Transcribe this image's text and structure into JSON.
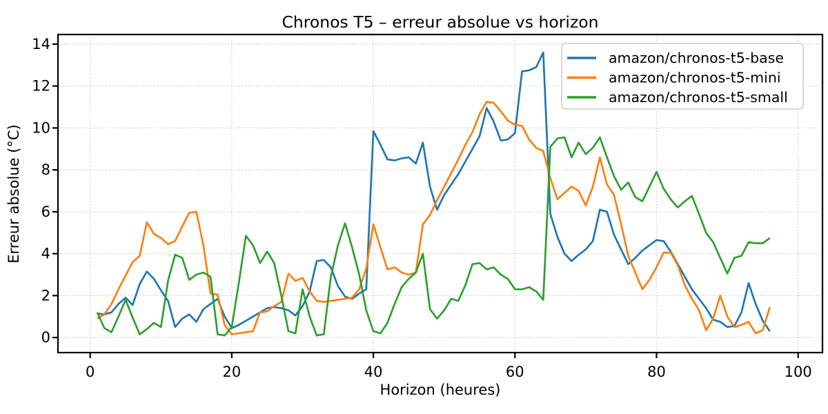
{
  "figure": {
    "title": "Chronos T5 – erreur absolue vs horizon",
    "xlabel": "Horizon (heures)",
    "ylabel": "Erreur absolue (°C)"
  },
  "style": {
    "background": "#ffffff",
    "grid_color": "#c8c8c8",
    "spine_color": "#000000",
    "legend_border": "#cccccc",
    "series_line_width": 2.7
  },
  "chart_data": {
    "type": "line",
    "title": "Chronos T5 – erreur absolue vs horizon",
    "xlabel": "Horizon (heures)",
    "ylabel": "Erreur absolue (°C)",
    "grid": true,
    "grid_style": "dotted",
    "legend_position": "upper right",
    "xlim": [
      -4.55,
      103.44
    ],
    "ylim": [
      -0.72,
      14.46
    ],
    "xticks": [
      0,
      20,
      40,
      60,
      80,
      100
    ],
    "yticks": [
      0,
      2,
      4,
      6,
      8,
      10,
      12,
      14
    ],
    "x": [
      1,
      2,
      3,
      4,
      5,
      6,
      7,
      8,
      9,
      10,
      11,
      12,
      13,
      14,
      15,
      16,
      17,
      18,
      19,
      20,
      21,
      22,
      23,
      24,
      25,
      26,
      27,
      28,
      29,
      30,
      31,
      32,
      33,
      34,
      35,
      36,
      37,
      38,
      39,
      40,
      41,
      42,
      43,
      44,
      45,
      46,
      47,
      48,
      49,
      50,
      51,
      52,
      53,
      54,
      55,
      56,
      57,
      58,
      59,
      60,
      61,
      62,
      63,
      64,
      65,
      66,
      67,
      68,
      69,
      70,
      71,
      72,
      73,
      74,
      75,
      76,
      77,
      78,
      79,
      80,
      81,
      82,
      83,
      84,
      85,
      86,
      87,
      88,
      89,
      90,
      91,
      92,
      93,
      94,
      95,
      96
    ],
    "series": [
      {
        "id": "base",
        "name": "amazon/chronos-t5-base",
        "color": "#1f77b4",
        "values": [
          1.15,
          1.1,
          1.2,
          1.6,
          1.9,
          1.55,
          2.55,
          3.15,
          2.8,
          2.25,
          1.75,
          0.5,
          0.9,
          1.1,
          0.75,
          1.35,
          1.6,
          1.85,
          1.0,
          0.45,
          0.6,
          0.8,
          1.0,
          1.2,
          1.4,
          1.45,
          1.4,
          1.3,
          1.05,
          1.5,
          2.2,
          3.65,
          3.7,
          3.35,
          2.45,
          1.95,
          1.85,
          2.1,
          2.3,
          9.85,
          9.2,
          8.5,
          8.45,
          8.55,
          8.6,
          8.3,
          9.3,
          7.2,
          6.1,
          6.8,
          7.3,
          7.8,
          8.4,
          9.0,
          9.6,
          10.95,
          10.3,
          9.4,
          9.45,
          9.75,
          12.7,
          12.75,
          12.9,
          13.6,
          5.9,
          4.8,
          4.0,
          3.65,
          3.95,
          4.2,
          4.6,
          6.1,
          6.0,
          4.9,
          4.2,
          3.5,
          3.8,
          4.15,
          4.4,
          4.65,
          4.6,
          4.1,
          3.5,
          2.9,
          2.3,
          1.85,
          1.4,
          0.85,
          0.75,
          0.5,
          0.55,
          1.2,
          2.6,
          1.6,
          0.8,
          0.3
        ]
      },
      {
        "id": "mini",
        "name": "amazon/chronos-t5-mini",
        "color": "#ff7f0e",
        "values": [
          0.9,
          1.1,
          1.6,
          2.3,
          2.95,
          3.6,
          3.9,
          5.5,
          4.95,
          4.75,
          4.45,
          4.6,
          5.3,
          5.95,
          6.0,
          4.4,
          2.1,
          2.05,
          0.6,
          0.15,
          0.2,
          0.25,
          0.3,
          1.2,
          1.25,
          1.5,
          1.7,
          3.05,
          2.7,
          2.85,
          2.2,
          1.75,
          1.7,
          1.75,
          1.8,
          1.85,
          1.9,
          2.3,
          3.3,
          5.4,
          4.3,
          3.25,
          3.35,
          3.1,
          3.0,
          3.1,
          5.4,
          5.85,
          6.55,
          7.2,
          7.85,
          8.5,
          9.2,
          9.8,
          10.65,
          11.25,
          11.2,
          10.8,
          10.35,
          10.15,
          10.1,
          9.45,
          9.05,
          8.9,
          7.6,
          6.6,
          6.9,
          7.2,
          7.0,
          6.3,
          7.2,
          8.6,
          7.3,
          6.8,
          5.4,
          3.9,
          3.1,
          2.3,
          2.75,
          3.35,
          4.05,
          4.05,
          3.45,
          2.5,
          1.85,
          1.3,
          0.35,
          0.9,
          2.0,
          1.0,
          0.5,
          0.6,
          0.75,
          0.2,
          0.35,
          1.45
        ]
      },
      {
        "id": "small",
        "name": "amazon/chronos-t5-small",
        "color": "#2ca02c",
        "values": [
          1.2,
          0.45,
          0.25,
          1.0,
          1.8,
          0.95,
          0.15,
          0.4,
          0.7,
          0.5,
          2.7,
          3.95,
          3.8,
          2.75,
          3.0,
          3.1,
          2.9,
          0.15,
          0.1,
          0.5,
          2.6,
          4.85,
          4.4,
          3.55,
          4.1,
          3.55,
          2.0,
          0.3,
          0.2,
          2.3,
          1.0,
          0.1,
          0.15,
          2.9,
          4.4,
          5.45,
          4.3,
          3.0,
          1.3,
          0.3,
          0.2,
          0.7,
          1.6,
          2.4,
          2.8,
          3.1,
          4.0,
          1.35,
          0.9,
          1.3,
          1.85,
          1.75,
          2.5,
          3.5,
          3.55,
          3.25,
          3.35,
          3.0,
          2.8,
          2.3,
          2.3,
          2.4,
          2.2,
          1.8,
          9.1,
          9.5,
          9.55,
          8.6,
          9.3,
          8.75,
          9.05,
          9.55,
          8.6,
          7.7,
          7.05,
          7.4,
          6.7,
          6.5,
          7.2,
          7.9,
          7.1,
          6.6,
          6.2,
          6.5,
          6.75,
          5.9,
          5.0,
          4.55,
          3.8,
          3.05,
          3.8,
          3.9,
          4.55,
          4.5,
          4.5,
          4.75
        ]
      }
    ]
  }
}
